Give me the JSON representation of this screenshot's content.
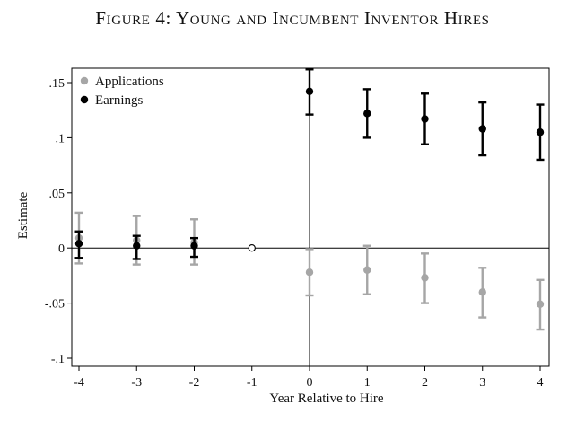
{
  "chart_data": {
    "type": "scatter",
    "title": "Figure 4: Young and Incumbent Inventor Hires",
    "xlabel": "Year Relative to Hire",
    "ylabel": "Estimate",
    "xlim": [
      -4,
      4
    ],
    "ylim": [
      -0.1,
      0.16
    ],
    "x_ticks": [
      -4,
      -3,
      -2,
      -1,
      0,
      1,
      2,
      3,
      4
    ],
    "x_tick_labels": [
      "-4",
      "-3",
      "-2",
      "-1",
      "0",
      "1",
      "2",
      "3",
      "4"
    ],
    "y_ticks": [
      -0.1,
      -0.05,
      0,
      0.05,
      0.1,
      0.15
    ],
    "y_tick_labels": [
      "-.1",
      "-.05",
      "0",
      ".05",
      ".1",
      ".15"
    ],
    "reference_lines": {
      "horizontal_y": 0,
      "vertical_x": 0
    },
    "grid": false,
    "legend": "top-left",
    "reference_point": {
      "x": -1,
      "y": 0,
      "style": "hollow"
    },
    "series": [
      {
        "name": "Applications",
        "color": "#a6a6a6",
        "x": [
          -4,
          -3,
          -2,
          0,
          1,
          2,
          3,
          4
        ],
        "y": [
          0.009,
          0.007,
          0.005,
          -0.022,
          -0.02,
          -0.027,
          -0.04,
          -0.051
        ],
        "ci_low": [
          -0.014,
          -0.015,
          -0.015,
          -0.043,
          -0.042,
          -0.05,
          -0.063,
          -0.074
        ],
        "ci_high": [
          0.032,
          0.029,
          0.026,
          -0.001,
          0.002,
          -0.005,
          -0.018,
          -0.029
        ]
      },
      {
        "name": "Earnings",
        "color": "#000000",
        "x": [
          -4,
          -3,
          -2,
          0,
          1,
          2,
          3,
          4
        ],
        "y": [
          0.004,
          0.002,
          0.002,
          0.142,
          0.122,
          0.117,
          0.108,
          0.105
        ],
        "ci_low": [
          -0.009,
          -0.01,
          -0.008,
          0.121,
          0.1,
          0.094,
          0.084,
          0.08
        ],
        "ci_high": [
          0.015,
          0.011,
          0.009,
          0.162,
          0.144,
          0.14,
          0.132,
          0.13
        ]
      }
    ]
  }
}
